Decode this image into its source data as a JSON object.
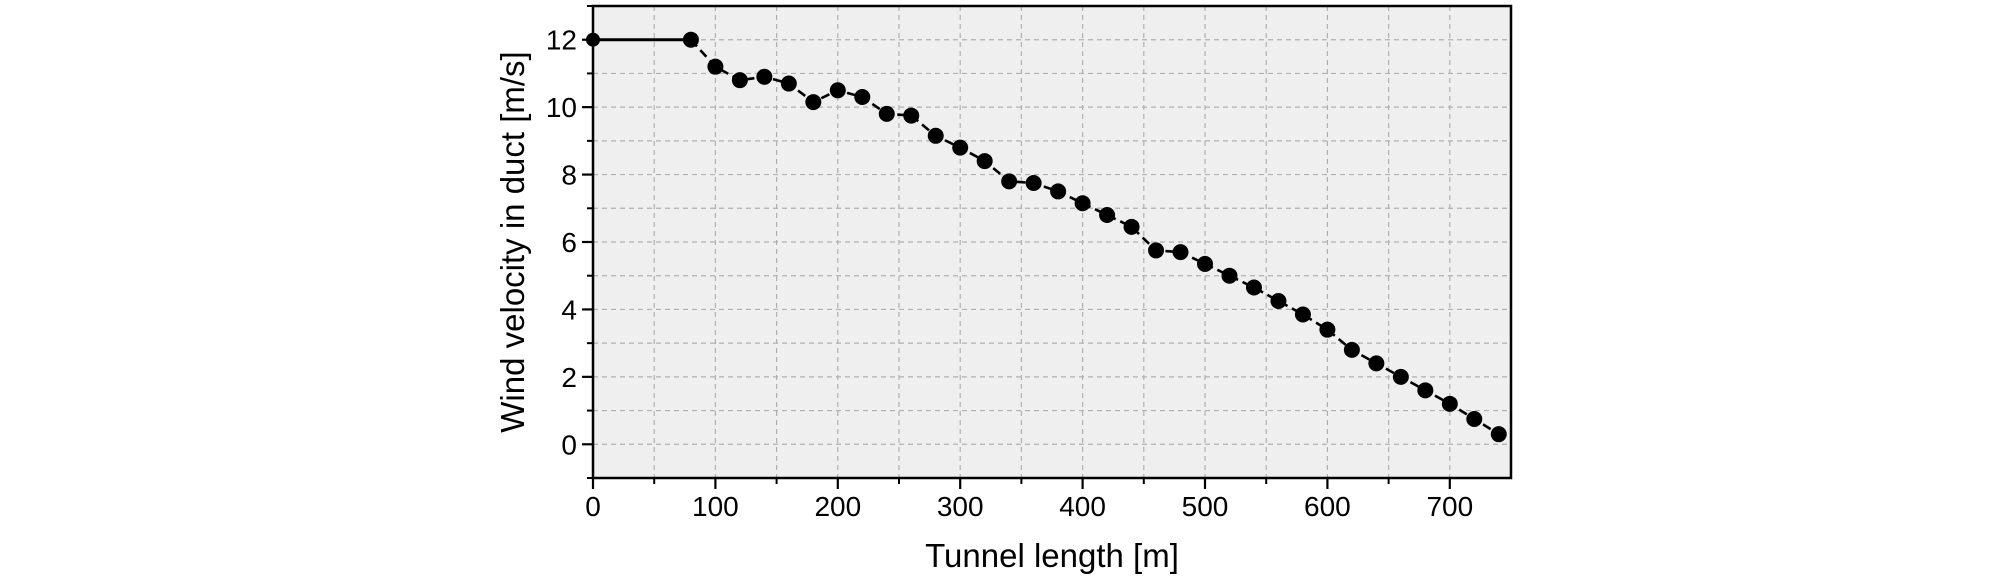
{
  "chart_data": {
    "type": "line",
    "title": "",
    "xlabel": "Tunnel length [m]",
    "ylabel": "Wind velocity in duct [m/s]",
    "xlim": [
      0,
      750
    ],
    "ylim": [
      -1,
      13
    ],
    "xticks": [
      0,
      100,
      200,
      300,
      400,
      500,
      600,
      700
    ],
    "yticks": [
      0,
      2,
      4,
      6,
      8,
      10,
      12
    ],
    "x_tick_labels": [
      "0",
      "100",
      "200",
      "300",
      "400",
      "500",
      "600",
      "700"
    ],
    "y_tick_labels": [
      "0",
      "2",
      "4",
      "6",
      "8",
      "10",
      "12"
    ],
    "grid": true,
    "legend": "none",
    "colors": {
      "plot_background": "#efefef",
      "grid": "#b0b0b0",
      "line": "#000000",
      "marker": "#000000"
    },
    "series": [
      {
        "x": [
          0,
          80,
          100,
          120,
          140,
          160,
          180,
          200,
          220,
          240,
          260,
          280,
          300,
          320,
          340,
          360,
          380,
          400,
          420,
          440,
          460,
          480,
          500,
          520,
          540,
          560,
          580,
          600,
          620,
          640,
          660,
          680,
          700,
          720,
          740
        ],
        "y": [
          12.0,
          12.0,
          11.2,
          10.8,
          10.9,
          10.7,
          10.15,
          10.5,
          10.3,
          9.8,
          9.75,
          9.15,
          8.8,
          8.4,
          7.8,
          7.75,
          7.5,
          7.15,
          6.8,
          6.45,
          5.75,
          5.7,
          5.35,
          5.0,
          4.65,
          4.25,
          3.85,
          3.4,
          2.8,
          2.4,
          2.0,
          1.6,
          1.2,
          0.75,
          0.3
        ],
        "markers_from_index": 1,
        "segment_styles": [
          "solid",
          "dashed"
        ]
      }
    ]
  }
}
